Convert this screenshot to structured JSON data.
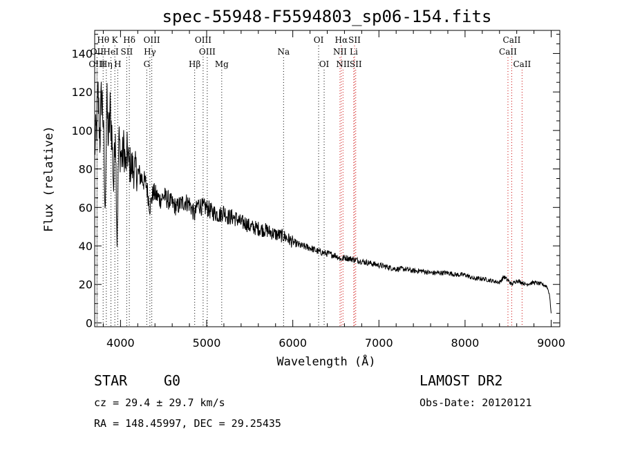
{
  "chart_data": {
    "type": "line",
    "title": "spec-55948-F5594803_sp06-154.fits",
    "xlabel": "Wavelength (Å)",
    "ylabel": "Flux (relative)",
    "xlim": [
      3700,
      9100
    ],
    "ylim": [
      -2,
      152
    ],
    "xticks": [
      4000,
      5000,
      6000,
      7000,
      8000,
      9000
    ],
    "yticks": [
      0,
      20,
      40,
      60,
      80,
      100,
      120,
      140
    ],
    "grid": false,
    "line_color": "#000000",
    "series": [
      {
        "values_note": "",
        "x": [
          3700,
          3720,
          3740,
          3760,
          3780,
          3800,
          3820,
          3840,
          3860,
          3880,
          3900,
          3920,
          3940,
          3960,
          3980,
          4000,
          4020,
          4040,
          4060,
          4080,
          4100,
          4120,
          4150,
          4200,
          4250,
          4300,
          4340,
          4380,
          4420,
          4460,
          4500,
          4550,
          4600,
          4650,
          4700,
          4750,
          4800,
          4861,
          4900,
          4950,
          5000,
          5050,
          5100,
          5150,
          5200,
          5250,
          5300,
          5350,
          5400,
          5450,
          5500,
          5600,
          5700,
          5800,
          5900,
          6000,
          6100,
          6200,
          6300,
          6400,
          6500,
          6563,
          6600,
          6700,
          6800,
          6900,
          7000,
          7100,
          7200,
          7300,
          7400,
          7500,
          7600,
          7700,
          7800,
          7900,
          8000,
          8100,
          8200,
          8300,
          8400,
          8450,
          8500,
          8542,
          8600,
          8662,
          8700,
          8800,
          8900,
          8950,
          8980,
          9000
        ],
        "y": [
          90,
          100,
          118,
          95,
          120,
          105,
          55,
          115,
          95,
          110,
          98,
          70,
          105,
          42,
          95,
          88,
          85,
          92,
          80,
          90,
          82,
          82,
          80,
          78,
          75,
          72,
          60,
          68,
          66,
          64,
          66,
          64,
          62,
          60,
          62,
          63,
          62,
          56,
          62,
          60,
          60,
          58,
          57,
          56,
          58,
          55,
          55,
          54,
          52,
          52,
          50,
          49,
          48,
          46,
          45,
          42,
          40,
          39,
          37,
          36,
          35,
          33,
          34,
          33,
          32,
          31,
          30,
          29,
          28,
          28,
          27,
          27,
          26,
          26,
          26,
          25,
          25,
          23,
          23,
          22,
          21,
          24,
          22,
          20,
          22,
          21,
          20,
          21,
          20,
          19,
          15,
          5
        ]
      }
    ],
    "spectral_lines": [
      {
        "label": "Hθ",
        "x": 3798,
        "row": 0,
        "color": "#000000"
      },
      {
        "label": "K",
        "x": 3934,
        "row": 0,
        "color": "#000000"
      },
      {
        "label": "Hδ",
        "x": 4102,
        "row": 0,
        "color": "#000000"
      },
      {
        "label": "OIII",
        "x": 4363,
        "row": 0,
        "color": "#000000"
      },
      {
        "label": "OIII",
        "x": 4959,
        "row": 0,
        "color": "#000000"
      },
      {
        "label": "OI",
        "x": 6300,
        "row": 0,
        "color": "#000000"
      },
      {
        "label": "Hα",
        "x": 6563,
        "row": 0,
        "color": "#cc0000"
      },
      {
        "label": "SII",
        "x": 6717,
        "row": 0,
        "color": "#cc0000"
      },
      {
        "label": "CaII",
        "x": 8542,
        "row": 0,
        "color": "#cc0000"
      },
      {
        "label": "OII",
        "x": 3727,
        "row": 1,
        "color": "#000000"
      },
      {
        "label": "HeI",
        "x": 3889,
        "row": 1,
        "color": "#000000"
      },
      {
        "label": "SII",
        "x": 4072,
        "row": 1,
        "color": "#000000"
      },
      {
        "label": "Hγ",
        "x": 4341,
        "row": 1,
        "color": "#000000"
      },
      {
        "label": "OIII",
        "x": 5007,
        "row": 1,
        "color": "#000000"
      },
      {
        "label": "Na",
        "x": 5893,
        "row": 1,
        "color": "#000000"
      },
      {
        "label": "NII",
        "x": 6548,
        "row": 1,
        "color": "#cc0000"
      },
      {
        "label": "Li",
        "x": 6708,
        "row": 1,
        "color": "#cc0000"
      },
      {
        "label": "CaII",
        "x": 8498,
        "row": 1,
        "color": "#cc0000"
      },
      {
        "label": "OIII",
        "x": 3727,
        "row": 2,
        "color": "#000000"
      },
      {
        "label": "Hη",
        "x": 3835,
        "row": 2,
        "color": "#000000"
      },
      {
        "label": "H",
        "x": 3968,
        "row": 2,
        "color": "#000000"
      },
      {
        "label": "G",
        "x": 4305,
        "row": 2,
        "color": "#000000"
      },
      {
        "label": "Hβ",
        "x": 4861,
        "row": 2,
        "color": "#000000"
      },
      {
        "label": "Mg",
        "x": 5175,
        "row": 2,
        "color": "#000000"
      },
      {
        "label": "OI",
        "x": 6364,
        "row": 2,
        "color": "#000000"
      },
      {
        "label": "NII",
        "x": 6583,
        "row": 2,
        "color": "#cc0000"
      },
      {
        "label": "SII",
        "x": 6731,
        "row": 2,
        "color": "#cc0000"
      },
      {
        "label": "CaII",
        "x": 8662,
        "row": 2,
        "color": "#cc0000"
      }
    ]
  },
  "info": {
    "object_class": "STAR",
    "subclass": "G0",
    "survey": "LAMOST DR2",
    "redshift": "cz = 29.4 ± 29.7 km/s",
    "obs_date": "Obs-Date: 20120121",
    "coords": "RA = 148.45997, DEC =  29.25435"
  }
}
